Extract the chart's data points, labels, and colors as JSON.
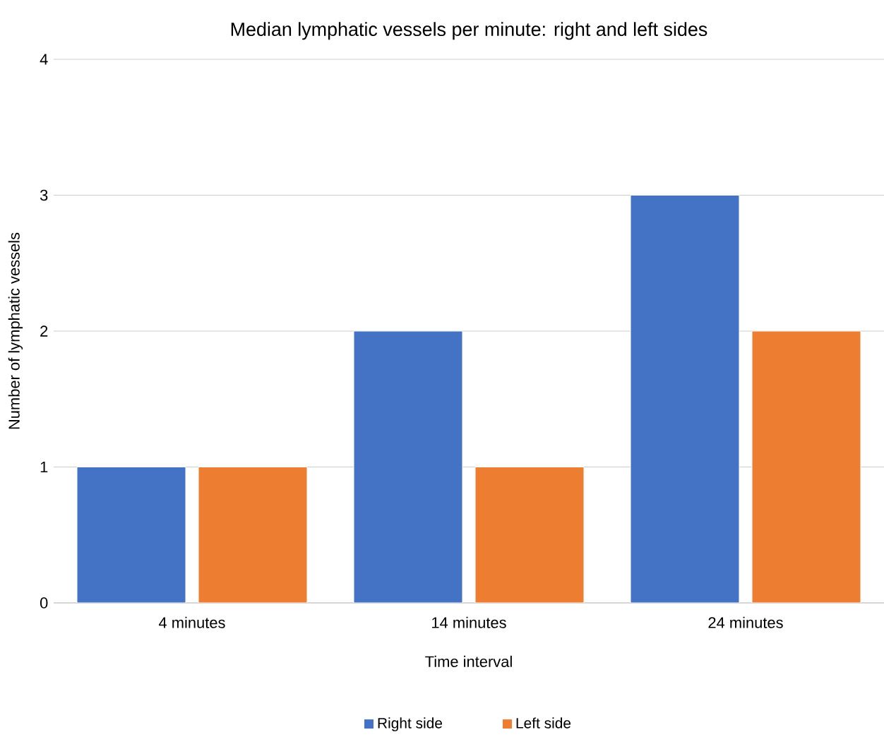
{
  "chart_data": {
    "type": "bar",
    "title": "Median lymphatic vessels per minute: right and left sides",
    "xlabel": "Time interval",
    "ylabel": "Number of lymphatic vessels",
    "categories": [
      "4 minutes",
      "14 minutes",
      "24 minutes"
    ],
    "series": [
      {
        "name": "Right side",
        "color": "#4472c4",
        "values": [
          1,
          2,
          3
        ]
      },
      {
        "name": "Left side",
        "color": "#ed7d31",
        "values": [
          1,
          1,
          2
        ]
      }
    ],
    "ylim": [
      0,
      4
    ],
    "yticks": [
      0,
      1,
      2,
      3,
      4
    ],
    "grid": "y",
    "legend": "bottom"
  }
}
